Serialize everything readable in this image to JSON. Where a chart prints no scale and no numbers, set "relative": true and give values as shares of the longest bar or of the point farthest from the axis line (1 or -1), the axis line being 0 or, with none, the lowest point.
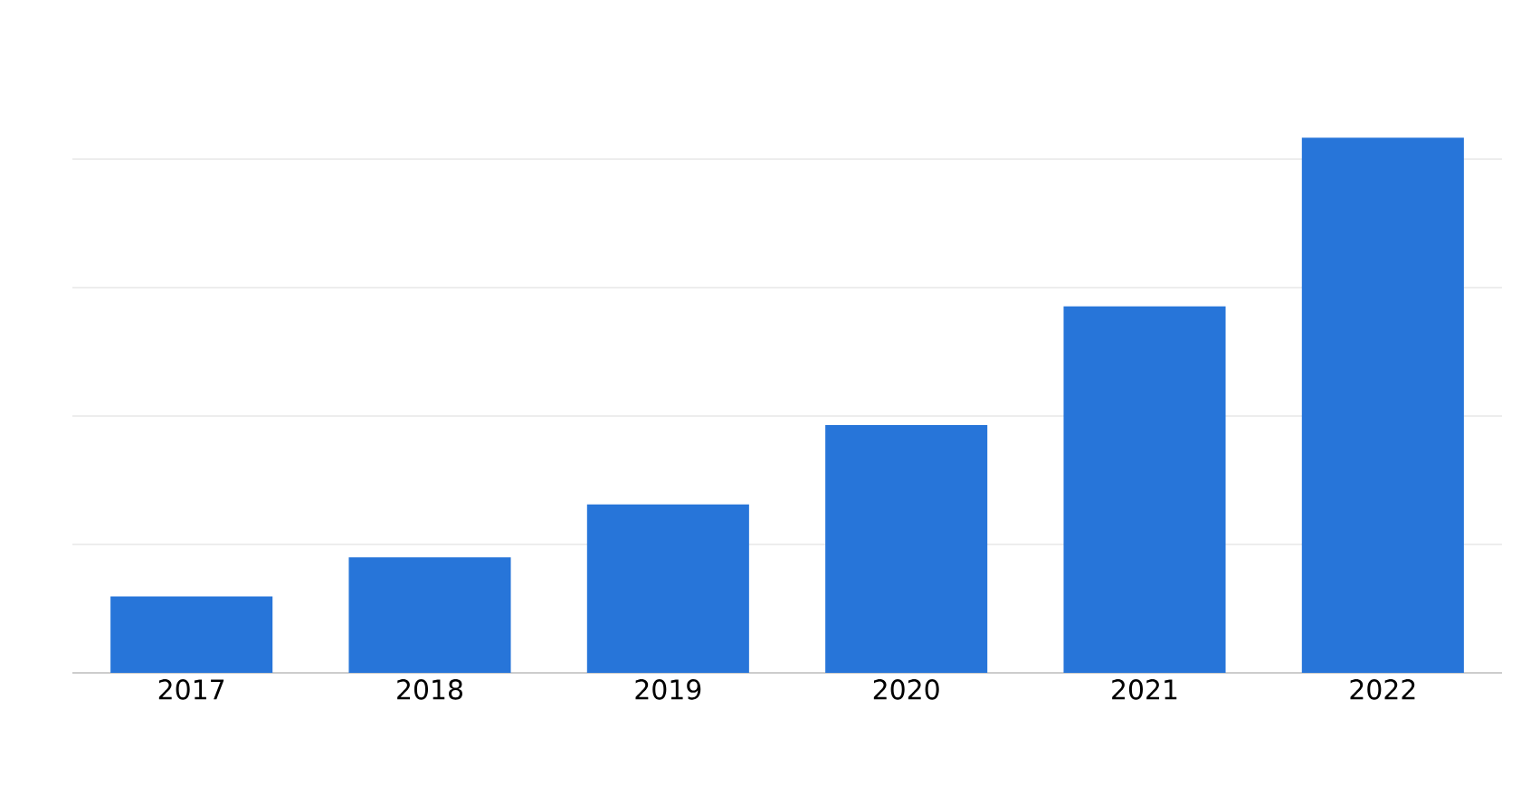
{
  "chart_data": {
    "type": "bar",
    "relative": true,
    "color": "#2775d9",
    "grid": "y",
    "categories": [
      "2017",
      "2018",
      "2019",
      "2020",
      "2021",
      "2022"
    ],
    "values": [
      0.143,
      0.216,
      0.315,
      0.463,
      0.685,
      1.0
    ]
  }
}
